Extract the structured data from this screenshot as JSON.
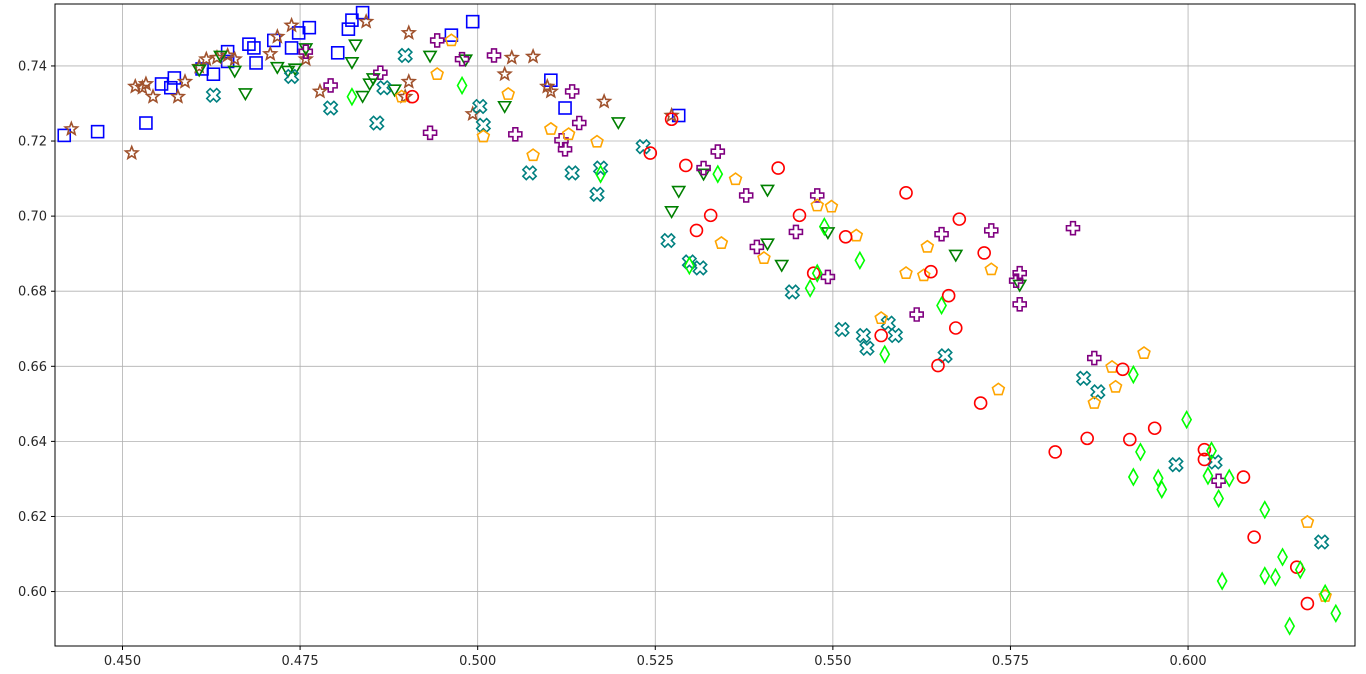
{
  "chart_data": {
    "type": "scatter",
    "title": "",
    "xlabel": "",
    "ylabel": "",
    "xlim": [
      0.4405,
      0.6235
    ],
    "ylim": [
      0.5855,
      0.7565
    ],
    "grid": true,
    "x_ticks": [
      {
        "value": 0.45,
        "label": "0.450"
      },
      {
        "value": 0.475,
        "label": "0.475"
      },
      {
        "value": 0.5,
        "label": "0.500"
      },
      {
        "value": 0.525,
        "label": "0.525"
      },
      {
        "value": 0.55,
        "label": "0.550"
      },
      {
        "value": 0.575,
        "label": "0.575"
      },
      {
        "value": 0.6,
        "label": "0.600"
      }
    ],
    "y_ticks": [
      {
        "value": 0.6,
        "label": "0.60"
      },
      {
        "value": 0.62,
        "label": "0.62"
      },
      {
        "value": 0.64,
        "label": "0.64"
      },
      {
        "value": 0.66,
        "label": "0.66"
      },
      {
        "value": 0.68,
        "label": "0.68"
      },
      {
        "value": 0.7,
        "label": "0.70"
      },
      {
        "value": 0.72,
        "label": "0.72"
      },
      {
        "value": 0.74,
        "label": "0.74"
      }
    ],
    "series": [
      {
        "marker": "square",
        "color": "#0000ff",
        "points": [
          [
            0.4418,
            0.7215
          ],
          [
            0.4465,
            0.7225
          ],
          [
            0.4533,
            0.7248
          ],
          [
            0.4555,
            0.7352
          ],
          [
            0.4568,
            0.7342
          ],
          [
            0.4573,
            0.7368
          ],
          [
            0.4612,
            0.7392
          ],
          [
            0.4628,
            0.7378
          ],
          [
            0.4648,
            0.7412
          ],
          [
            0.4648,
            0.7438
          ],
          [
            0.4678,
            0.7458
          ],
          [
            0.4685,
            0.7448
          ],
          [
            0.4688,
            0.7408
          ],
          [
            0.4713,
            0.7468
          ],
          [
            0.4738,
            0.7448
          ],
          [
            0.4748,
            0.7488
          ],
          [
            0.4763,
            0.7502
          ],
          [
            0.4803,
            0.7435
          ],
          [
            0.4818,
            0.7498
          ],
          [
            0.4823,
            0.7522
          ],
          [
            0.4838,
            0.7542
          ],
          [
            0.4963,
            0.7482
          ],
          [
            0.4993,
            0.7518
          ],
          [
            0.5103,
            0.7362
          ],
          [
            0.5123,
            0.7288
          ],
          [
            0.5283,
            0.7268
          ]
        ]
      },
      {
        "marker": "star",
        "color": "#a0522d",
        "points": [
          [
            0.4428,
            0.7232
          ],
          [
            0.4513,
            0.7168
          ],
          [
            0.4518,
            0.7345
          ],
          [
            0.4528,
            0.7342
          ],
          [
            0.4533,
            0.7352
          ],
          [
            0.4543,
            0.7318
          ],
          [
            0.4578,
            0.7318
          ],
          [
            0.4588,
            0.7358
          ],
          [
            0.4608,
            0.7398
          ],
          [
            0.4618,
            0.7418
          ],
          [
            0.4633,
            0.7422
          ],
          [
            0.4648,
            0.7428
          ],
          [
            0.4658,
            0.7418
          ],
          [
            0.4708,
            0.7432
          ],
          [
            0.4718,
            0.7478
          ],
          [
            0.4738,
            0.7508
          ],
          [
            0.4758,
            0.7418
          ],
          [
            0.4778,
            0.7332
          ],
          [
            0.4843,
            0.7518
          ],
          [
            0.4898,
            0.7318
          ],
          [
            0.4903,
            0.7358
          ],
          [
            0.4903,
            0.7488
          ],
          [
            0.4993,
            0.7272
          ],
          [
            0.5038,
            0.7378
          ],
          [
            0.5048,
            0.7422
          ],
          [
            0.5078,
            0.7425
          ],
          [
            0.5098,
            0.7345
          ],
          [
            0.5103,
            0.7332
          ],
          [
            0.5178,
            0.7305
          ],
          [
            0.5273,
            0.7268
          ]
        ]
      },
      {
        "marker": "triangle",
        "color": "#008000",
        "points": [
          [
            0.4608,
            0.7395
          ],
          [
            0.4638,
            0.7432
          ],
          [
            0.4658,
            0.7392
          ],
          [
            0.4673,
            0.7332
          ],
          [
            0.4718,
            0.7402
          ],
          [
            0.4733,
            0.7392
          ],
          [
            0.4743,
            0.7398
          ],
          [
            0.4758,
            0.7452
          ],
          [
            0.4823,
            0.7415
          ],
          [
            0.4828,
            0.7462
          ],
          [
            0.4838,
            0.7325
          ],
          [
            0.4848,
            0.7358
          ],
          [
            0.4853,
            0.7372
          ],
          [
            0.4883,
            0.7342
          ],
          [
            0.4933,
            0.7432
          ],
          [
            0.4983,
            0.7422
          ],
          [
            0.5038,
            0.7298
          ],
          [
            0.5198,
            0.7255
          ],
          [
            0.5273,
            0.7018
          ],
          [
            0.5283,
            0.7072
          ],
          [
            0.5318,
            0.7118
          ],
          [
            0.5408,
            0.7075
          ],
          [
            0.5408,
            0.6932
          ],
          [
            0.5428,
            0.6875
          ],
          [
            0.5493,
            0.6962
          ],
          [
            0.5673,
            0.6902
          ],
          [
            0.5763,
            0.6822
          ]
        ]
      },
      {
        "marker": "x",
        "color": "#008080",
        "points": [
          [
            0.4628,
            0.7322
          ],
          [
            0.4738,
            0.7372
          ],
          [
            0.4793,
            0.7288
          ],
          [
            0.4858,
            0.7248
          ],
          [
            0.4868,
            0.7342
          ],
          [
            0.4898,
            0.7428
          ],
          [
            0.5003,
            0.7292
          ],
          [
            0.5008,
            0.7242
          ],
          [
            0.5073,
            0.7115
          ],
          [
            0.5133,
            0.7115
          ],
          [
            0.5168,
            0.7058
          ],
          [
            0.5173,
            0.7128
          ],
          [
            0.5233,
            0.7185
          ],
          [
            0.5268,
            0.6935
          ],
          [
            0.5298,
            0.6878
          ],
          [
            0.5313,
            0.6862
          ],
          [
            0.5443,
            0.6798
          ],
          [
            0.5513,
            0.6698
          ],
          [
            0.5543,
            0.6682
          ],
          [
            0.5548,
            0.6648
          ],
          [
            0.5578,
            0.6715
          ],
          [
            0.5588,
            0.6682
          ],
          [
            0.5658,
            0.6628
          ],
          [
            0.5853,
            0.6568
          ],
          [
            0.5873,
            0.6532
          ],
          [
            0.5983,
            0.6338
          ],
          [
            0.6038,
            0.6345
          ],
          [
            0.6188,
            0.6132
          ]
        ]
      },
      {
        "marker": "plus",
        "color": "#800080",
        "points": [
          [
            0.4758,
            0.7438
          ],
          [
            0.4793,
            0.7348
          ],
          [
            0.4863,
            0.7382
          ],
          [
            0.4933,
            0.7222
          ],
          [
            0.4943,
            0.7468
          ],
          [
            0.4978,
            0.7418
          ],
          [
            0.5023,
            0.7428
          ],
          [
            0.5053,
            0.7218
          ],
          [
            0.5118,
            0.7202
          ],
          [
            0.5123,
            0.7178
          ],
          [
            0.5133,
            0.7332
          ],
          [
            0.5143,
            0.7248
          ],
          [
            0.5318,
            0.7128
          ],
          [
            0.5338,
            0.7172
          ],
          [
            0.5378,
            0.7055
          ],
          [
            0.5393,
            0.6918
          ],
          [
            0.5448,
            0.6958
          ],
          [
            0.5478,
            0.7055
          ],
          [
            0.5493,
            0.6838
          ],
          [
            0.5618,
            0.6738
          ],
          [
            0.5653,
            0.6952
          ],
          [
            0.5723,
            0.6962
          ],
          [
            0.5758,
            0.6828
          ],
          [
            0.5763,
            0.6848
          ],
          [
            0.5763,
            0.6765
          ],
          [
            0.5838,
            0.6968
          ],
          [
            0.5868,
            0.6622
          ],
          [
            0.6043,
            0.6295
          ]
        ]
      },
      {
        "marker": "pentagon",
        "color": "#ffa500",
        "points": [
          [
            0.4893,
            0.7318
          ],
          [
            0.4943,
            0.7378
          ],
          [
            0.4963,
            0.7468
          ],
          [
            0.5008,
            0.7212
          ],
          [
            0.5043,
            0.7325
          ],
          [
            0.5078,
            0.7162
          ],
          [
            0.5103,
            0.7232
          ],
          [
            0.5128,
            0.7218
          ],
          [
            0.5168,
            0.7198
          ],
          [
            0.5343,
            0.6928
          ],
          [
            0.5363,
            0.7098
          ],
          [
            0.5403,
            0.6888
          ],
          [
            0.5478,
            0.7028
          ],
          [
            0.5498,
            0.7025
          ],
          [
            0.5533,
            0.6948
          ],
          [
            0.5568,
            0.6728
          ],
          [
            0.5603,
            0.6848
          ],
          [
            0.5628,
            0.6842
          ],
          [
            0.5633,
            0.6918
          ],
          [
            0.5723,
            0.6858
          ],
          [
            0.5733,
            0.6538
          ],
          [
            0.5868,
            0.6502
          ],
          [
            0.5893,
            0.6598
          ],
          [
            0.5898,
            0.6545
          ],
          [
            0.5938,
            0.6635
          ],
          [
            0.6168,
            0.6185
          ],
          [
            0.6193,
            0.5988
          ]
        ]
      },
      {
        "marker": "circle",
        "color": "#ff0000",
        "points": [
          [
            0.4908,
            0.7318
          ],
          [
            0.5243,
            0.7168
          ],
          [
            0.5273,
            0.7258
          ],
          [
            0.5293,
            0.7135
          ],
          [
            0.5308,
            0.6962
          ],
          [
            0.5328,
            0.7002
          ],
          [
            0.5423,
            0.7128
          ],
          [
            0.5453,
            0.7002
          ],
          [
            0.5473,
            0.6848
          ],
          [
            0.5518,
            0.6945
          ],
          [
            0.5568,
            0.6682
          ],
          [
            0.5603,
            0.7062
          ],
          [
            0.5638,
            0.6852
          ],
          [
            0.5648,
            0.6602
          ],
          [
            0.5663,
            0.6788
          ],
          [
            0.5673,
            0.6702
          ],
          [
            0.5678,
            0.6992
          ],
          [
            0.5708,
            0.6502
          ],
          [
            0.5713,
            0.6902
          ],
          [
            0.5813,
            0.6372
          ],
          [
            0.5858,
            0.6408
          ],
          [
            0.5908,
            0.6592
          ],
          [
            0.5918,
            0.6405
          ],
          [
            0.5953,
            0.6435
          ],
          [
            0.6023,
            0.6352
          ],
          [
            0.6023,
            0.6378
          ],
          [
            0.6078,
            0.6305
          ],
          [
            0.6093,
            0.6145
          ],
          [
            0.6153,
            0.6065
          ],
          [
            0.6168,
            0.5968
          ]
        ]
      },
      {
        "marker": "diamond",
        "color": "#00ff00",
        "points": [
          [
            0.4823,
            0.7318
          ],
          [
            0.4978,
            0.7348
          ],
          [
            0.5173,
            0.7112
          ],
          [
            0.5298,
            0.6868
          ],
          [
            0.5338,
            0.7112
          ],
          [
            0.5468,
            0.6808
          ],
          [
            0.5478,
            0.6848
          ],
          [
            0.5488,
            0.6972
          ],
          [
            0.5538,
            0.6882
          ],
          [
            0.5573,
            0.6632
          ],
          [
            0.5653,
            0.6762
          ],
          [
            0.5923,
            0.6305
          ],
          [
            0.5923,
            0.6578
          ],
          [
            0.5933,
            0.6372
          ],
          [
            0.5958,
            0.6302
          ],
          [
            0.5963,
            0.6272
          ],
          [
            0.5998,
            0.6458
          ],
          [
            0.6028,
            0.6308
          ],
          [
            0.6033,
            0.6375
          ],
          [
            0.6043,
            0.6248
          ],
          [
            0.6048,
            0.6028
          ],
          [
            0.6058,
            0.6302
          ],
          [
            0.6108,
            0.6218
          ],
          [
            0.6108,
            0.6042
          ],
          [
            0.6123,
            0.6038
          ],
          [
            0.6133,
            0.6092
          ],
          [
            0.6143,
            0.5908
          ],
          [
            0.6158,
            0.6058
          ],
          [
            0.6193,
            0.5995
          ],
          [
            0.6208,
            0.5942
          ]
        ]
      }
    ]
  }
}
